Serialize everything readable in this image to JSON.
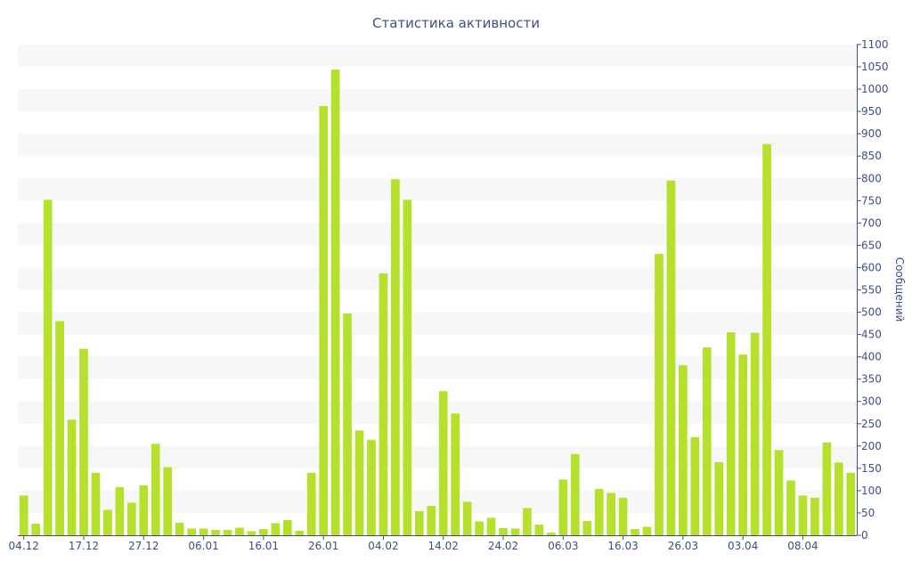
{
  "chart_data": {
    "type": "bar",
    "title": "Статистика активности",
    "ylabel": "Сообщений",
    "ylim": [
      0,
      1100
    ],
    "y_ticks": [
      0,
      50,
      100,
      150,
      200,
      250,
      300,
      350,
      400,
      450,
      500,
      550,
      600,
      650,
      700,
      750,
      800,
      850,
      900,
      950,
      1000,
      1050,
      1100
    ],
    "y_axis_position": "right",
    "grid": "alternating horizontal bands",
    "x_tick_labels": [
      {
        "label": "04.12",
        "bar_index": 0
      },
      {
        "label": "17.12",
        "bar_index": 5
      },
      {
        "label": "27.12",
        "bar_index": 10
      },
      {
        "label": "06.01",
        "bar_index": 15
      },
      {
        "label": "16.01",
        "bar_index": 20
      },
      {
        "label": "26.01",
        "bar_index": 25
      },
      {
        "label": "04.02",
        "bar_index": 30
      },
      {
        "label": "14.02",
        "bar_index": 35
      },
      {
        "label": "24.02",
        "bar_index": 40
      },
      {
        "label": "06.03",
        "bar_index": 45
      },
      {
        "label": "16.03",
        "bar_index": 50
      },
      {
        "label": "26.03",
        "bar_index": 55
      },
      {
        "label": "03.04",
        "bar_index": 60
      },
      {
        "label": "08.04",
        "bar_index": 65
      }
    ],
    "values": [
      89,
      26,
      752,
      480,
      259,
      418,
      140,
      57,
      108,
      73,
      112,
      205,
      153,
      28,
      15,
      15,
      12,
      12,
      17,
      9,
      14,
      27,
      34,
      10,
      140,
      962,
      1044,
      497,
      235,
      214,
      587,
      798,
      752,
      54,
      66,
      323,
      273,
      75,
      31,
      39,
      16,
      15,
      61,
      24,
      6,
      125,
      182,
      32,
      104,
      95,
      84,
      14,
      19,
      631,
      795,
      381,
      220,
      421,
      164,
      455,
      405,
      454,
      877,
      191,
      123,
      89,
      84,
      208,
      163,
      140
    ],
    "bar_color": "#b5e02c",
    "band_color": "#f7f7f7",
    "axis_color": "#3d4f87"
  }
}
